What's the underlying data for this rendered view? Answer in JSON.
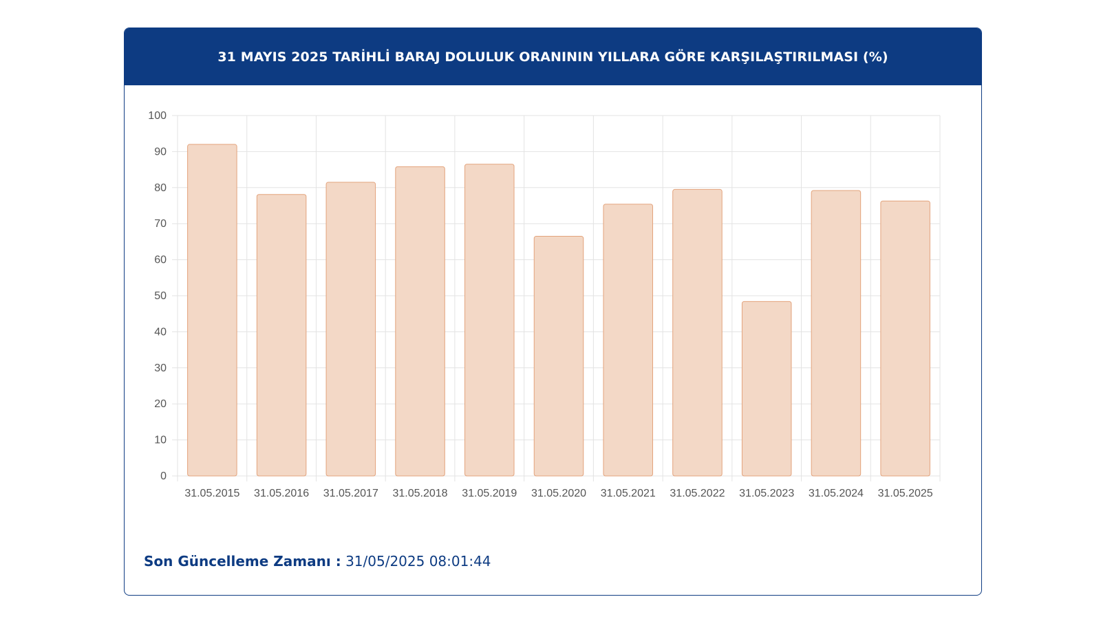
{
  "header": {
    "title": "31 MAYIS 2025 TARİHLİ BARAJ DOLULUK ORANININ YILLARA GÖRE KARŞILAŞTIRILMASI (%)"
  },
  "footer": {
    "label": "Son Güncelleme Zamanı :",
    "value": "31/05/2025 08:01:44"
  },
  "colors": {
    "header_bg": "#0d3b82",
    "bar_fill": "#f3d8c6",
    "bar_stroke": "#e3a37c",
    "grid": "#e3e3e3"
  },
  "chart_data": {
    "type": "bar",
    "title": "31 MAYIS 2025 TARİHLİ BARAJ DOLULUK ORANININ YILLARA GÖRE KARŞILAŞTIRILMASI (%)",
    "categories": [
      "31.05.2015",
      "31.05.2016",
      "31.05.2017",
      "31.05.2018",
      "31.05.2019",
      "31.05.2020",
      "31.05.2021",
      "31.05.2022",
      "31.05.2023",
      "31.05.2024",
      "31.05.2025"
    ],
    "values": [
      92,
      78.1,
      81.5,
      85.8,
      86.5,
      66.5,
      75.4,
      79.5,
      48.4,
      79.2,
      76.3
    ],
    "xlabel": "",
    "ylabel": "",
    "ylim": [
      0,
      100
    ],
    "yticks": [
      "0",
      "10",
      "20",
      "30",
      "40",
      "50",
      "60",
      "70",
      "80",
      "90",
      "100"
    ],
    "grid": true,
    "legend": "none"
  }
}
